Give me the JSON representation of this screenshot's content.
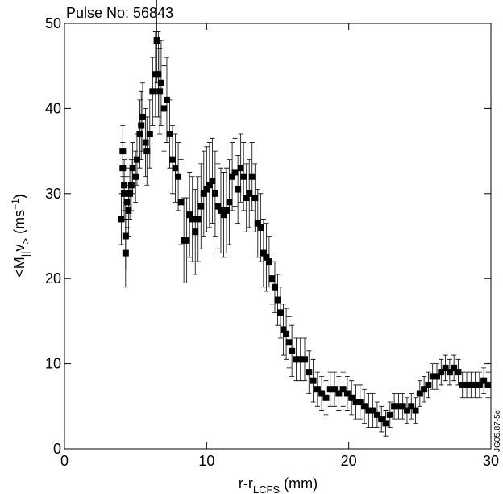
{
  "chart_data": {
    "type": "scatter",
    "title": "Pulse No: 56843",
    "xlabel": [
      "r-r",
      "LCFS",
      " (mm)"
    ],
    "ylabel": [
      "<M",
      "||",
      "v",
      ">",
      " (ms",
      "−1",
      ")"
    ],
    "side_label": "JG05.87-5c",
    "xlim": [
      0,
      30
    ],
    "ylim": [
      0,
      50
    ],
    "xticks": [
      0,
      10,
      20,
      30
    ],
    "yticks": [
      0,
      10,
      20,
      30,
      40,
      50
    ],
    "series": [
      {
        "color": "#000000",
        "x": [
          4.0,
          4.1,
          4.1,
          4.2,
          4.2,
          4.3,
          4.3,
          4.4,
          4.5,
          4.6,
          4.7,
          4.8,
          5.0,
          5.1,
          5.3,
          5.4,
          5.5,
          5.7,
          5.8,
          6.0,
          6.2,
          6.4,
          6.5,
          6.6,
          6.7,
          6.8,
          7.0,
          7.2,
          7.4,
          7.6,
          7.8,
          8.0,
          8.2,
          8.4,
          8.6,
          8.8,
          9.0,
          9.2,
          9.4,
          9.6,
          9.8,
          10.0,
          10.2,
          10.4,
          10.6,
          10.8,
          11.0,
          11.2,
          11.4,
          11.6,
          11.8,
          12.0,
          12.2,
          12.4,
          12.6,
          12.8,
          13.0,
          13.2,
          13.4,
          13.6,
          13.8,
          14.0,
          14.2,
          14.4,
          14.6,
          14.8,
          15.0,
          15.2,
          15.4,
          15.6,
          15.8,
          16.0,
          16.3,
          16.6,
          16.9,
          17.2,
          17.5,
          17.8,
          18.1,
          18.4,
          18.7,
          19.0,
          19.3,
          19.6,
          19.9,
          20.2,
          20.5,
          20.8,
          21.1,
          21.4,
          21.7,
          22.0,
          22.3,
          22.6,
          22.9,
          23.2,
          23.5,
          23.8,
          24.1,
          24.4,
          24.7,
          25.0,
          25.3,
          25.6,
          25.9,
          26.2,
          26.5,
          26.8,
          27.1,
          27.4,
          27.7,
          28.0,
          28.3,
          28.6,
          28.9,
          29.2,
          29.5,
          29.8
        ],
        "values": [
          27,
          35,
          33,
          31,
          30,
          25,
          23,
          29,
          28,
          30,
          31,
          33,
          32,
          34,
          37,
          38,
          39,
          36,
          35,
          37,
          42,
          44,
          48,
          44,
          42,
          43,
          40,
          41,
          37,
          34,
          33,
          32,
          29,
          24.5,
          24.5,
          27.5,
          27,
          25.5,
          27,
          28.5,
          30,
          30.5,
          31,
          31.5,
          30,
          28.5,
          28,
          27.5,
          28,
          29,
          32,
          32.5,
          30.5,
          33,
          32,
          29.5,
          30,
          32,
          29.5,
          26.5,
          26,
          23,
          22.5,
          22,
          20,
          19,
          17.5,
          16,
          14,
          13.5,
          12.5,
          11.5,
          10.5,
          10.5,
          10.5,
          9,
          8,
          7,
          6.5,
          6,
          7,
          7,
          6.5,
          7,
          6.5,
          6,
          5.5,
          5.5,
          5,
          4.5,
          4.5,
          4,
          3.5,
          3,
          4,
          5,
          5,
          5,
          4.5,
          5,
          4.5,
          6.5,
          7,
          7.5,
          8.5,
          8.5,
          9,
          9.5,
          9,
          9.5,
          9,
          7.5,
          7.5,
          7.5,
          7.5,
          7.5,
          8,
          7.5
        ],
        "errors": [
          3,
          3,
          3,
          3,
          3,
          4,
          4,
          3,
          3,
          3,
          3,
          3,
          3,
          3,
          4,
          4,
          4,
          4,
          4,
          4,
          4,
          5,
          5,
          5,
          5,
          5,
          5,
          5,
          4,
          4,
          4,
          4,
          5,
          5,
          5,
          5,
          5,
          5,
          5,
          5,
          5,
          5,
          5,
          5,
          5,
          5,
          5,
          5,
          5,
          5,
          4,
          4,
          4,
          4,
          4,
          4,
          4,
          4,
          4,
          4,
          4,
          4,
          4,
          3,
          3,
          3,
          3,
          3,
          3,
          3,
          3,
          3,
          2.5,
          2.5,
          2.5,
          2.5,
          2.5,
          2,
          2,
          2,
          2,
          2,
          2,
          2,
          2,
          2,
          2,
          2,
          2,
          2,
          2,
          1.5,
          1.5,
          1.5,
          1.5,
          1.5,
          1.5,
          1.5,
          1.5,
          1.5,
          1.5,
          1.5,
          1.5,
          1.5,
          1.5,
          1.5,
          1.5,
          1.5,
          1.5,
          1.5,
          1.5,
          1.5,
          1.5,
          1.5,
          1.5,
          1.5,
          1.5,
          1.5
        ]
      }
    ]
  }
}
